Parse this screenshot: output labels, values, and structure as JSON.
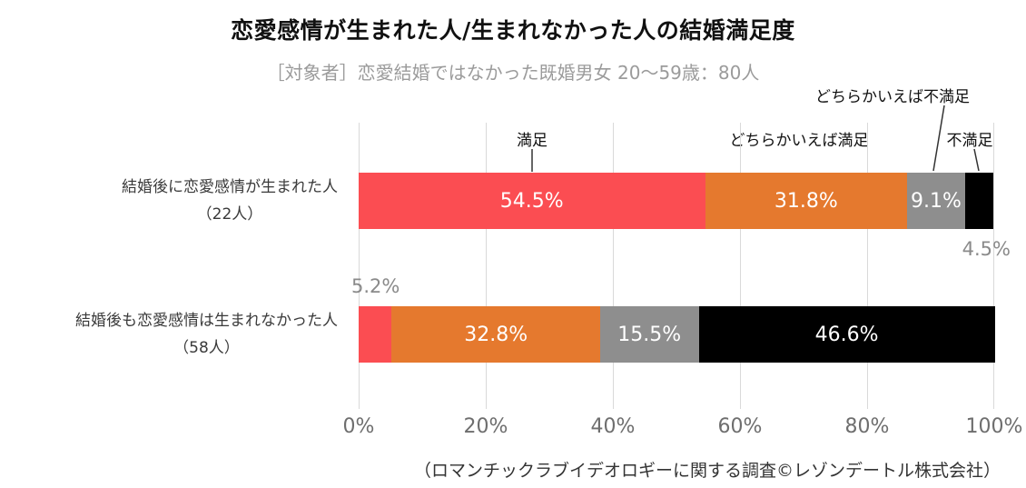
{
  "page": {
    "title": "恋愛感情が生まれた人/生まれなかった人の結婚満足度",
    "subtitle": "［対象者］恋愛結婚ではなかった既婚男女 20〜59歳：80人",
    "source": "（ロマンチックラブイデオロギーに関する調査©レゾンデートル株式会社）"
  },
  "chart_data": {
    "type": "bar",
    "stacked": true,
    "orientation": "horizontal",
    "xlim": [
      0,
      100
    ],
    "x_ticks": [
      "0%",
      "20%",
      "40%",
      "60%",
      "80%",
      "100%"
    ],
    "grid": true,
    "categories": [
      {
        "line1": "結婚後に恋愛感情が生まれた人",
        "line2": "（22人）"
      },
      {
        "line1": "結婚後も恋愛感情は生まれなかった人",
        "line2": "（58人）"
      }
    ],
    "series": [
      {
        "name": "満足",
        "color": "#fb4d52",
        "values": [
          54.5,
          5.2
        ]
      },
      {
        "name": "どちらかいえば満足",
        "color": "#e5792e",
        "values": [
          31.8,
          32.8
        ]
      },
      {
        "name": "どちらかいえば不満足",
        "color": "#8e8e8e",
        "values": [
          9.1,
          15.5
        ]
      },
      {
        "name": "不満足",
        "color": "#000000",
        "values": [
          4.5,
          46.6
        ]
      }
    ],
    "inside_label_min_value": 7,
    "outside_labels": [
      {
        "category": 0,
        "series": 3,
        "text": "4.5%",
        "position": "below"
      },
      {
        "category": 1,
        "series": 0,
        "text": "5.2%",
        "position": "above"
      }
    ]
  }
}
